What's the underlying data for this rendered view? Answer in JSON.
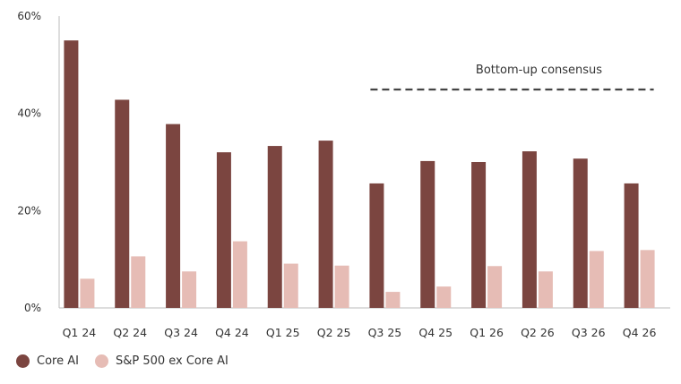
{
  "chart_data": {
    "type": "bar",
    "categories": [
      "Q1 24",
      "Q2 24",
      "Q3 24",
      "Q4 24",
      "Q1 25",
      "Q2 25",
      "Q3 25",
      "Q4 25",
      "Q1 26",
      "Q2 26",
      "Q3 26",
      "Q4 26"
    ],
    "series": [
      {
        "name": "Core AI",
        "color": "#7b4540",
        "values": [
          55,
          42.8,
          37.8,
          32,
          33.3,
          34.4,
          25.6,
          30.2,
          30,
          32.2,
          30.7,
          25.6
        ]
      },
      {
        "name": "S&P 500 ex Core AI",
        "color": "#e6bcb5",
        "values": [
          6,
          10.6,
          7.5,
          13.7,
          9.1,
          8.7,
          3.3,
          4.4,
          8.6,
          7.5,
          11.7,
          11.9
        ]
      }
    ],
    "y_ticks": [
      "0%",
      "20%",
      "40%",
      "60%"
    ],
    "y_tick_values": [
      0,
      20,
      40,
      60
    ],
    "ylim": [
      0,
      60
    ],
    "legend_position": "bottom-left",
    "annotation": {
      "text": "Bottom-up consensus",
      "from_category": "Q3 25",
      "to_category": "Q4 26",
      "style": "dashed"
    }
  }
}
